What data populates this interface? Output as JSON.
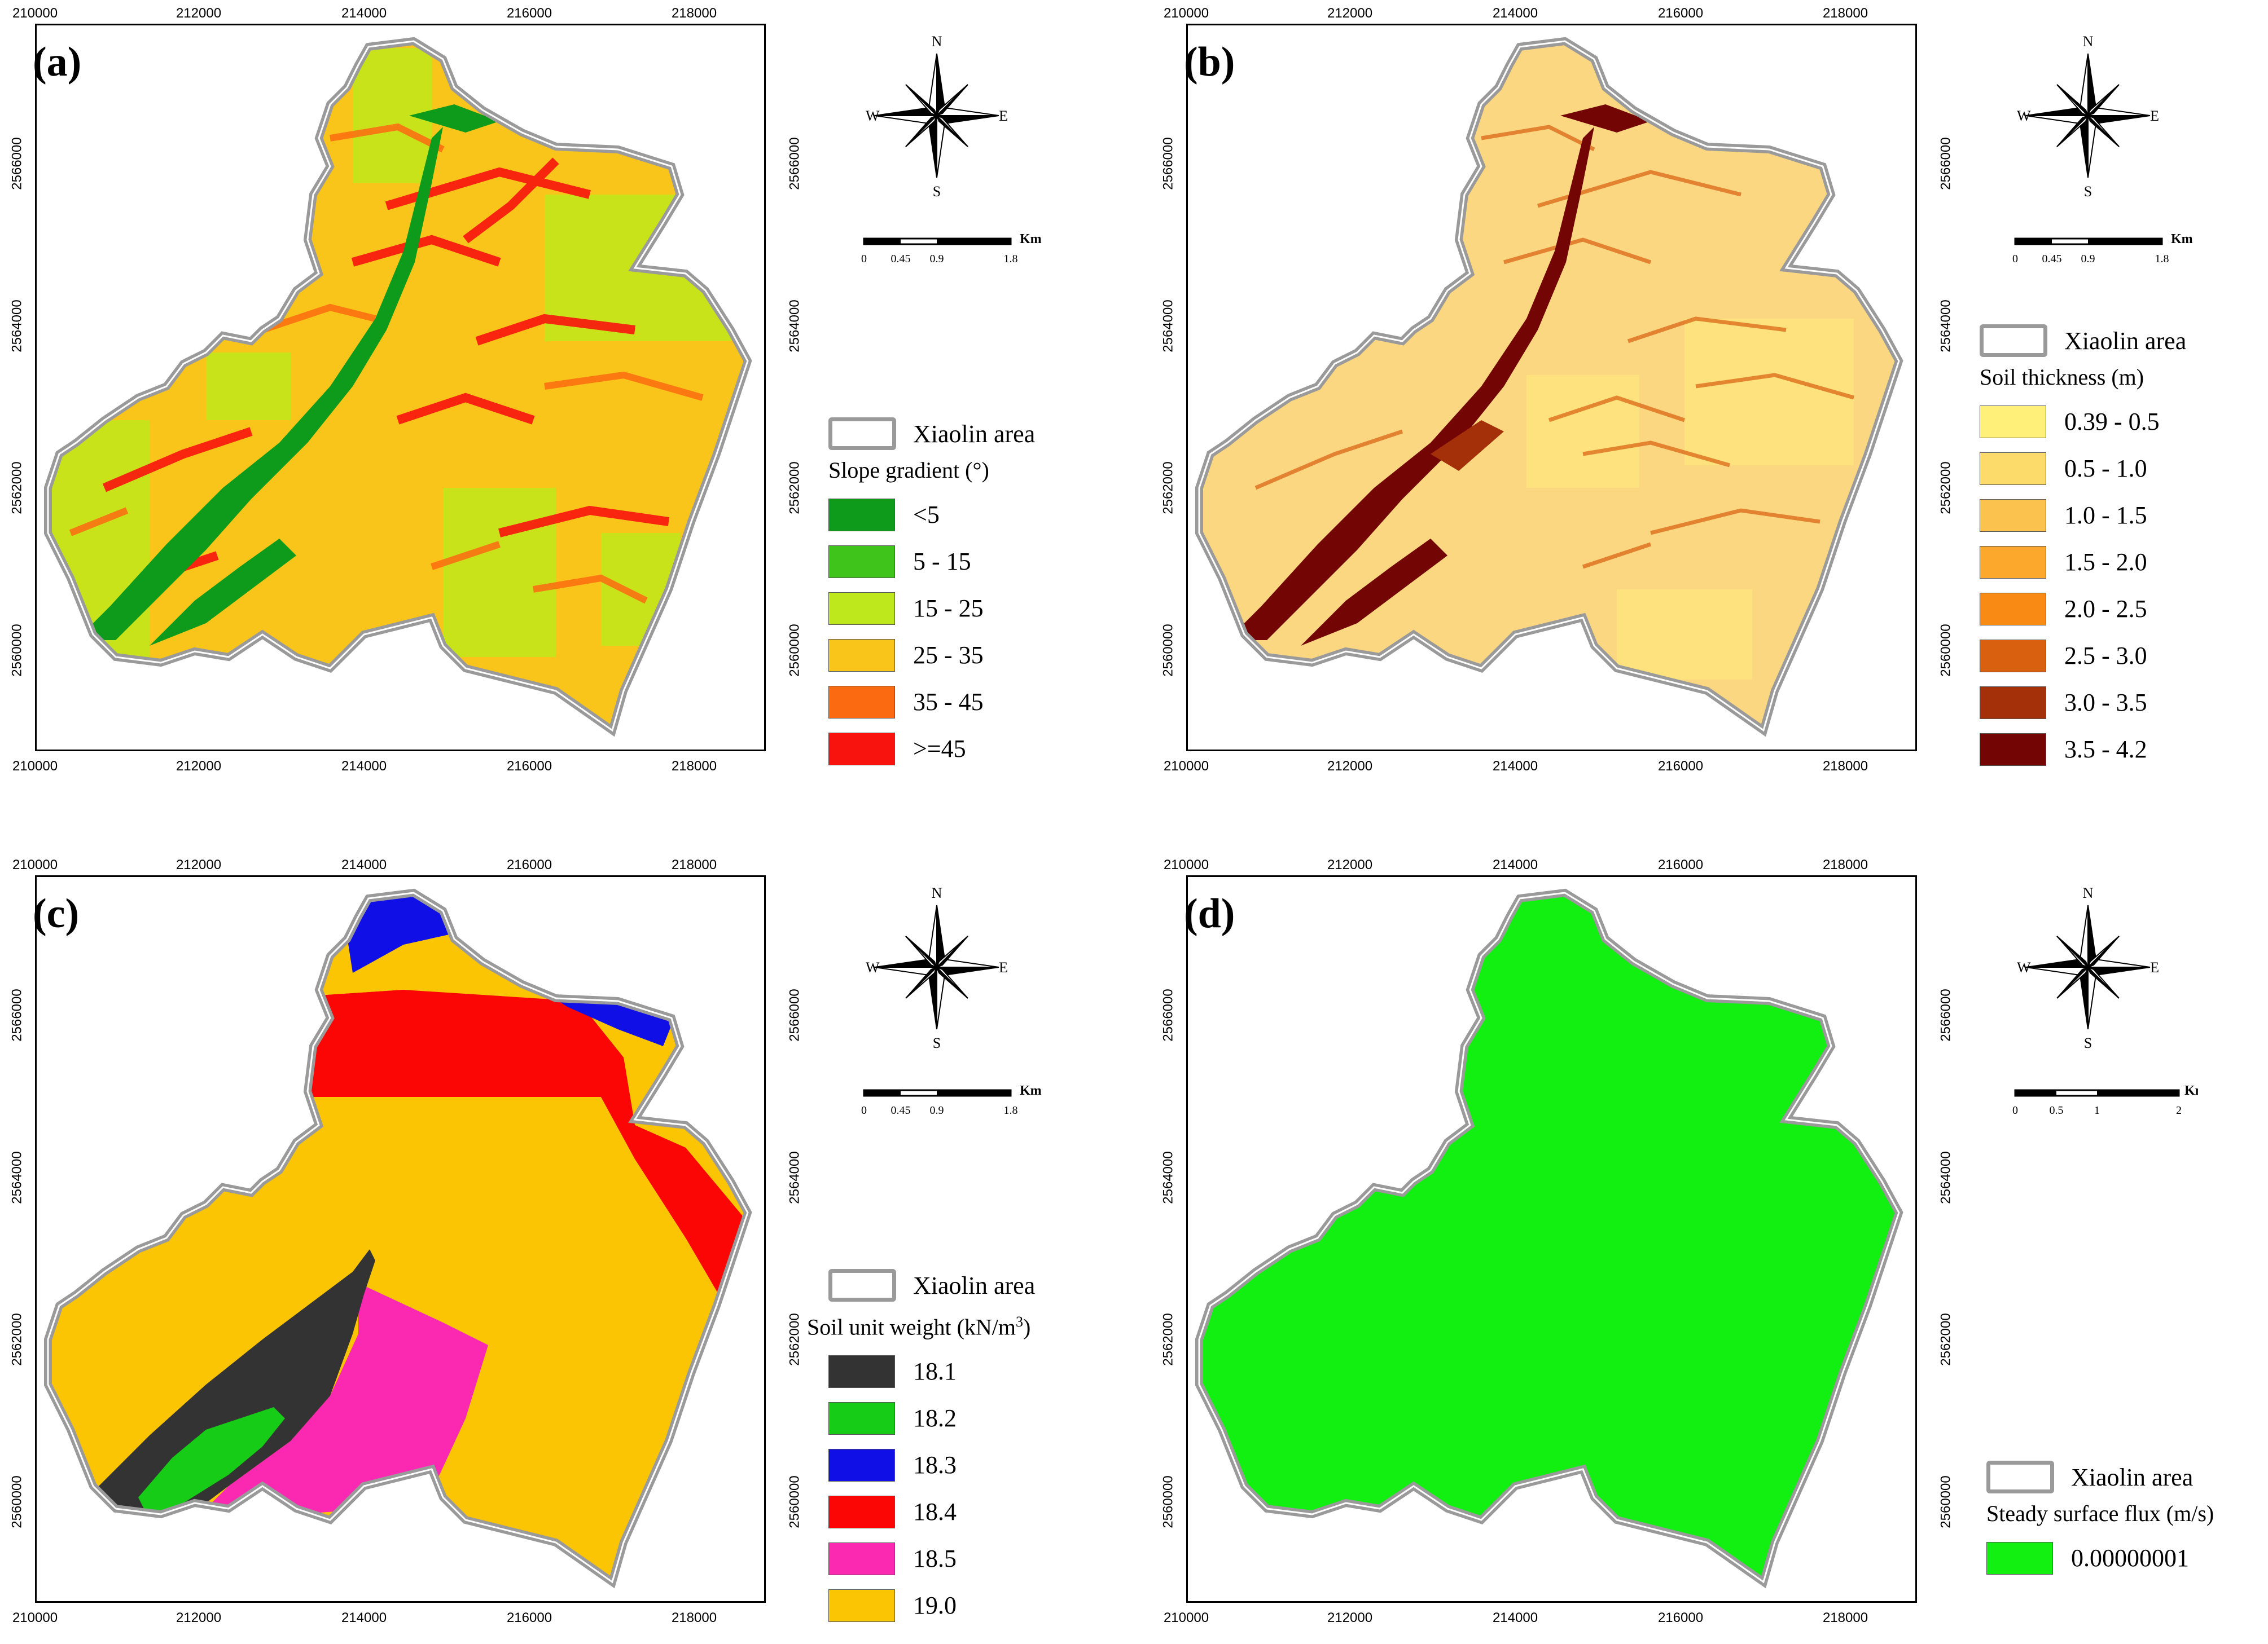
{
  "axis_ticks": {
    "easting": [
      "210000",
      "212000",
      "214000",
      "216000",
      "218000"
    ],
    "northing": [
      "2560000",
      "2562000",
      "2564000",
      "2566000"
    ]
  },
  "compass": {
    "n": "N",
    "s": "S",
    "e": "E",
    "w": "W"
  },
  "area_label": "Xiaolin area",
  "panels": [
    {
      "letter": "(a)",
      "legend_title": "Slope gradient (°)",
      "scale": {
        "unit": "Km",
        "ticks": [
          "0",
          "0.45",
          "0.9",
          "1.8"
        ]
      },
      "classes": [
        {
          "label": "<5",
          "color": "#0e9a1a"
        },
        {
          "label": "5 - 15",
          "color": "#3ec41a"
        },
        {
          "label": "15 - 25",
          "color": "#bfe81c"
        },
        {
          "label": "25 - 35",
          "color": "#fac51a"
        },
        {
          "label": "35 - 45",
          "color": "#fb6a10"
        },
        {
          "label": ">=45",
          "color": "#f8130e"
        }
      ]
    },
    {
      "letter": "(b)",
      "legend_title": "Soil thickness (m)",
      "scale": {
        "unit": "Km",
        "ticks": [
          "0",
          "0.45",
          "0.9",
          "1.8"
        ]
      },
      "classes": [
        {
          "label": "0.39 - 0.5",
          "color": "#fff07a"
        },
        {
          "label": "0.5 - 1.0",
          "color": "#fddb6a"
        },
        {
          "label": "1.0 - 1.5",
          "color": "#fcc24e"
        },
        {
          "label": "1.5 - 2.0",
          "color": "#fca82d"
        },
        {
          "label": "2.0 - 2.5",
          "color": "#f98a14"
        },
        {
          "label": "2.5 - 3.0",
          "color": "#d9600f"
        },
        {
          "label": "3.0 - 3.5",
          "color": "#a4300a"
        },
        {
          "label": "3.5 - 4.2",
          "color": "#730505"
        }
      ]
    },
    {
      "letter": "(c)",
      "legend_title": "Soil unit weight (kN/m",
      "legend_title_sup": "3",
      "legend_title_end": ")",
      "scale": {
        "unit": "Km",
        "ticks": [
          "0",
          "0.45",
          "0.9",
          "1.8"
        ]
      },
      "classes": [
        {
          "label": "18.1",
          "color": "#333333"
        },
        {
          "label": "18.2",
          "color": "#16cc16"
        },
        {
          "label": "18.3",
          "color": "#1010e6"
        },
        {
          "label": "18.4",
          "color": "#fb0505"
        },
        {
          "label": "18.5",
          "color": "#fb28b2"
        },
        {
          "label": "19.0",
          "color": "#fcc503"
        }
      ]
    },
    {
      "letter": "(d)",
      "legend_title": "Steady surface flux (m/s)",
      "scale": {
        "unit": "Km",
        "ticks": [
          "0",
          "0.5",
          "1",
          "2"
        ]
      },
      "classes": [
        {
          "label": "0.00000001",
          "color": "#12f012"
        }
      ]
    }
  ]
}
